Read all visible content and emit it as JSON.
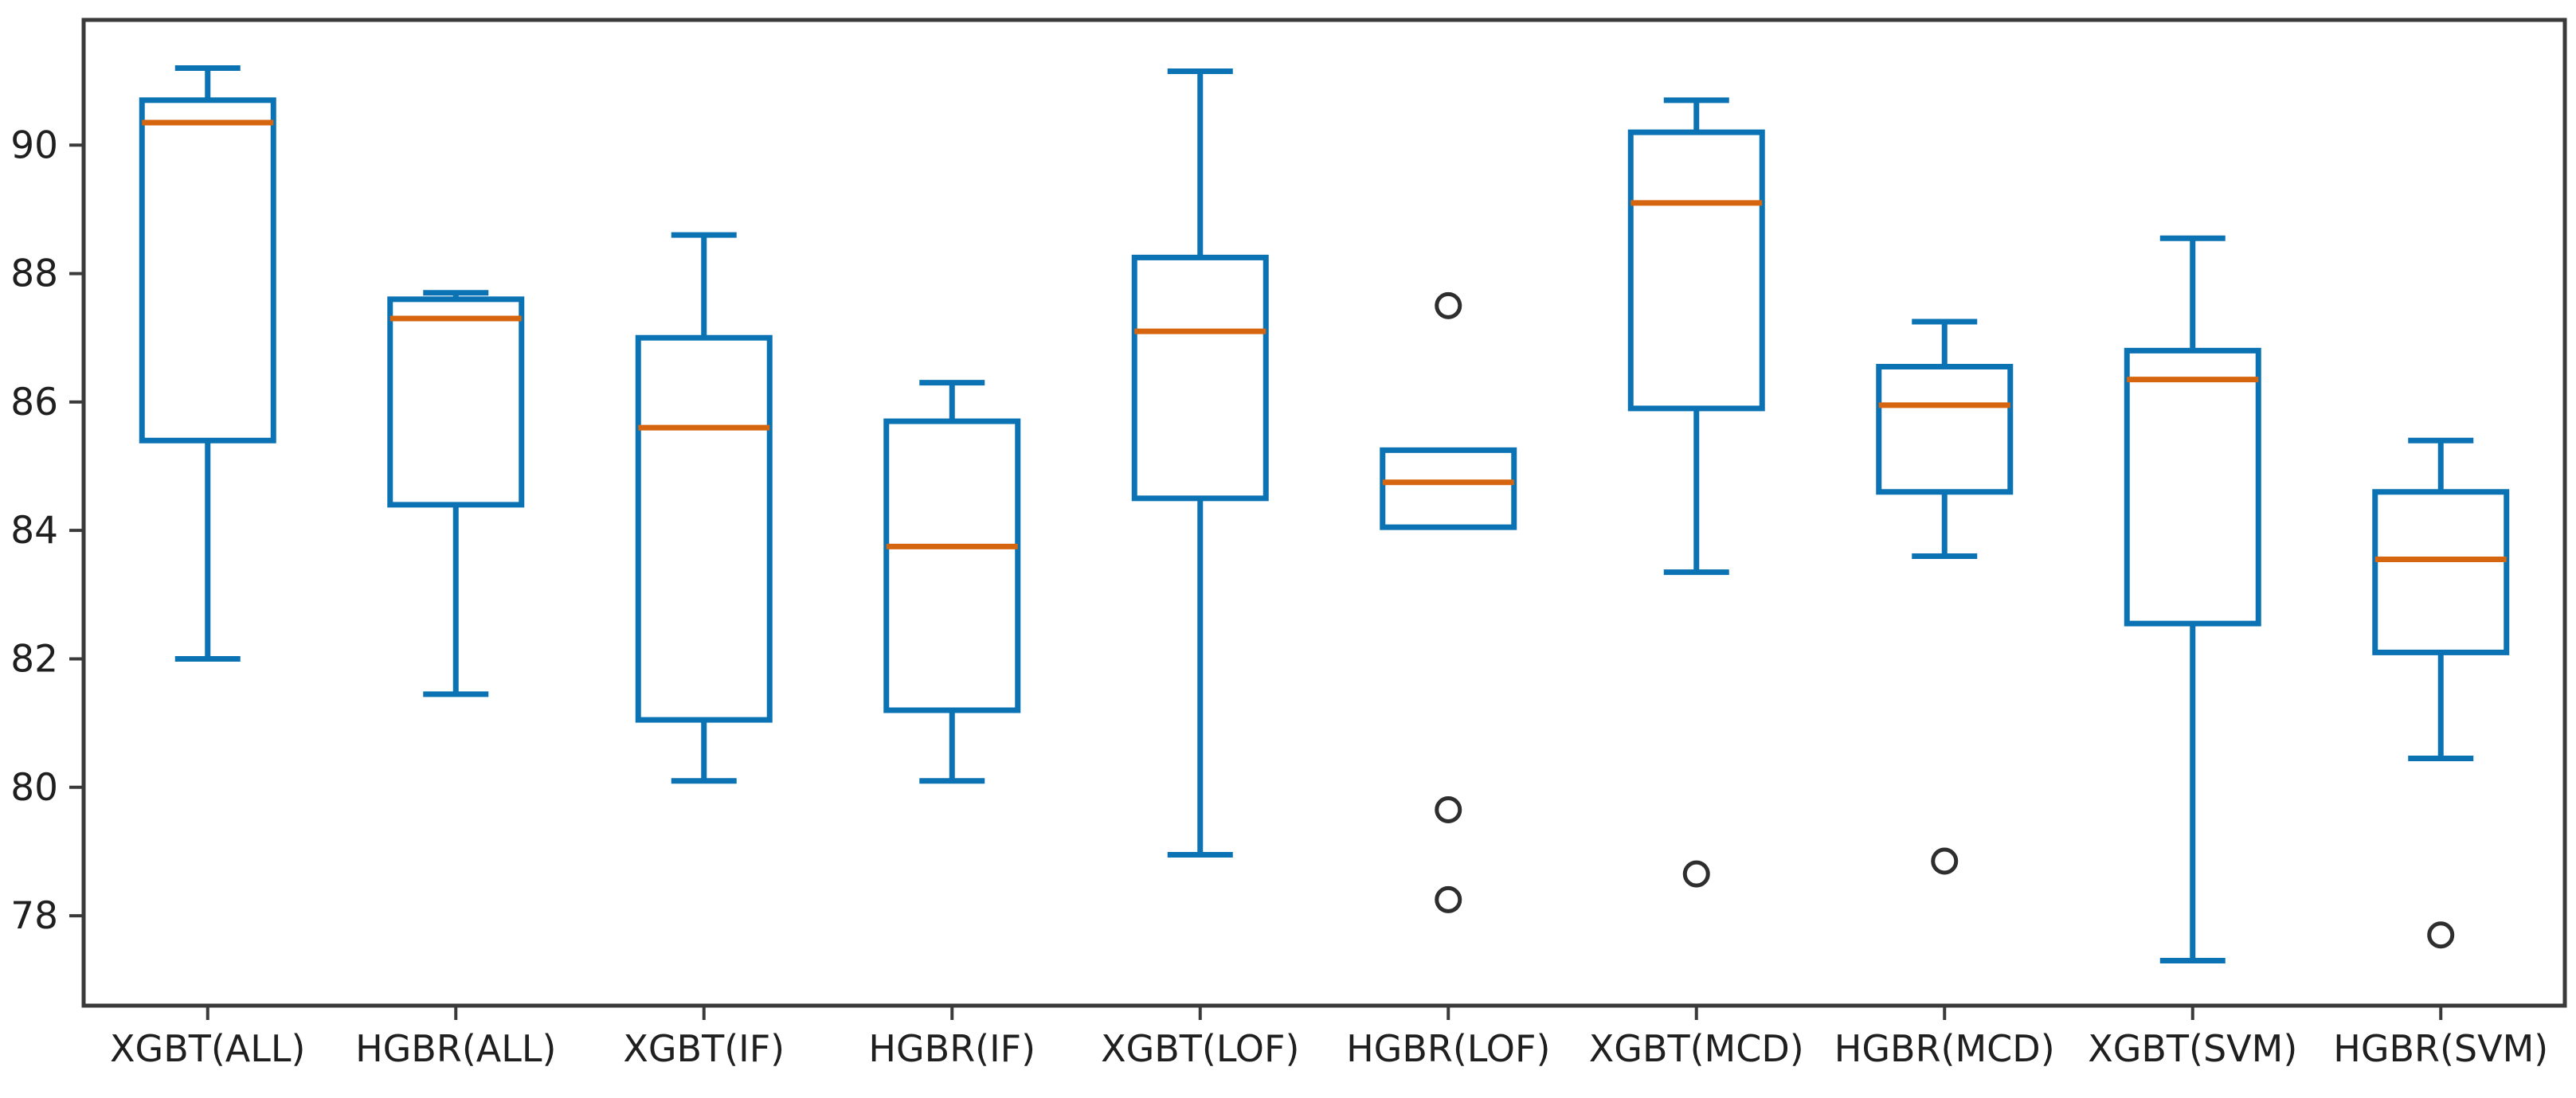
{
  "figure": {
    "background": "#ffffff"
  },
  "chart_data": {
    "type": "box",
    "title": "",
    "xlabel": "",
    "ylabel": "",
    "grid": false,
    "legend": null,
    "ylim": [
      76.6,
      91.95
    ],
    "yticks": [
      78,
      80,
      82,
      84,
      86,
      88,
      90
    ],
    "categories": [
      "XGBT(ALL)",
      "HGBR(ALL)",
      "XGBT(IF)",
      "HGBR(IF)",
      "XGBT(LOF)",
      "HGBR(LOF)",
      "XGBT(MCD)",
      "HGBR(MCD)",
      "XGBT(SVM)",
      "HGBR(SVM)"
    ],
    "series": [
      {
        "label": "XGBT(ALL)",
        "whislo": 82.0,
        "q1": 85.4,
        "med": 90.35,
        "q3": 90.7,
        "whishi": 91.2,
        "fliers": []
      },
      {
        "label": "HGBR(ALL)",
        "whislo": 81.45,
        "q1": 84.4,
        "med": 87.3,
        "q3": 87.6,
        "whishi": 87.7,
        "fliers": []
      },
      {
        "label": "XGBT(IF)",
        "whislo": 80.1,
        "q1": 81.05,
        "med": 85.6,
        "q3": 87.0,
        "whishi": 88.6,
        "fliers": []
      },
      {
        "label": "HGBR(IF)",
        "whislo": 80.1,
        "q1": 81.2,
        "med": 83.75,
        "q3": 85.7,
        "whishi": 86.3,
        "fliers": []
      },
      {
        "label": "XGBT(LOF)",
        "whislo": 78.95,
        "q1": 84.5,
        "med": 87.1,
        "q3": 88.25,
        "whishi": 91.15,
        "fliers": []
      },
      {
        "label": "HGBR(LOF)",
        "whislo": 84.05,
        "q1": 84.05,
        "med": 84.75,
        "q3": 85.25,
        "whishi": 85.25,
        "fliers": [
          87.5,
          79.65,
          78.25
        ]
      },
      {
        "label": "XGBT(MCD)",
        "whislo": 83.35,
        "q1": 85.9,
        "med": 89.1,
        "q3": 90.2,
        "whishi": 90.7,
        "fliers": [
          78.65
        ]
      },
      {
        "label": "HGBR(MCD)",
        "whislo": 83.6,
        "q1": 84.6,
        "med": 85.95,
        "q3": 86.55,
        "whishi": 87.25,
        "fliers": [
          78.85
        ]
      },
      {
        "label": "XGBT(SVM)",
        "whislo": 77.3,
        "q1": 82.55,
        "med": 86.35,
        "q3": 86.8,
        "whishi": 88.55,
        "fliers": []
      },
      {
        "label": "HGBR(SVM)",
        "whislo": 80.45,
        "q1": 82.1,
        "med": 83.55,
        "q3": 84.6,
        "whishi": 85.4,
        "fliers": [
          77.7
        ]
      }
    ],
    "colors": {
      "box": "#0b73b3",
      "median": "#d5650f",
      "axis": "#3a3a3a",
      "tick_label": "#1f1f1f",
      "flier": "#2e2e2e",
      "background": "#ffffff"
    }
  }
}
